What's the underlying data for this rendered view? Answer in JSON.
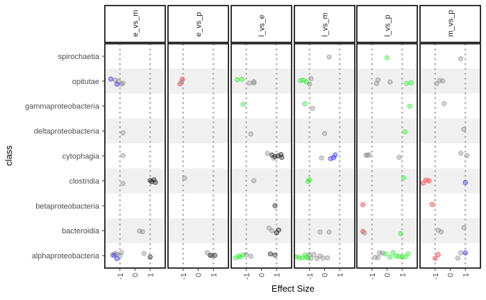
{
  "chart_data": {
    "type": "scatter",
    "title": "",
    "xlabel": "Effect Size",
    "ylabel": "class",
    "xlim": [
      -2,
      2
    ],
    "x_ticks": [
      "-1",
      "0",
      "1"
    ],
    "x_tick_values": [
      -1,
      0,
      1
    ],
    "reference_lines": [
      -1,
      1
    ],
    "grid": false,
    "legend": "none",
    "facets": [
      "e_vs_m",
      "e_vs_p",
      "l_vs_e",
      "l_vs_m",
      "l_vs_p",
      "m_vs_p"
    ],
    "categories": [
      "alphaproteobacteria",
      "bacteroidia",
      "betaproteobacteria",
      "clostridia",
      "cytophagia",
      "deltaproteobacteria",
      "gammaproteobacteria",
      "opitutae",
      "spirochaetia"
    ],
    "colors": {
      "grey": "#8c8c8c",
      "red": "#ff3030",
      "green": "#22ee22",
      "blue": "#2b2bff",
      "black": "#1e1e1e",
      "band": "#f0f0f0",
      "refline": "#b3b3b3"
    },
    "points": {
      "e_vs_m": [
        {
          "class": "spirochaetia",
          "x": [],
          "color": "grey"
        },
        {
          "class": "opitutae",
          "x": [
            -1.3,
            -1.1,
            -0.9,
            -0.8
          ],
          "color": "grey"
        },
        {
          "class": "opitutae",
          "x": [
            -1.6,
            -1.2
          ],
          "color": "blue"
        },
        {
          "class": "deltaproteobacteria",
          "x": [
            -0.8
          ],
          "color": "grey"
        },
        {
          "class": "cytophagia",
          "x": [
            -0.8
          ],
          "color": "grey"
        },
        {
          "class": "clostridia",
          "x": [
            -0.8
          ],
          "color": "grey"
        },
        {
          "class": "clostridia",
          "x": [
            1.0,
            1.1,
            1.25,
            1.35
          ],
          "color": "black"
        },
        {
          "class": "bacteroidia",
          "x": [
            0.3,
            0.5
          ],
          "color": "grey"
        },
        {
          "class": "alphaproteobacteria",
          "x": [
            -1.5,
            -1.3,
            -1.2,
            -1.0,
            -0.9,
            0.6
          ],
          "color": "grey"
        },
        {
          "class": "alphaproteobacteria",
          "x": [
            -1.4,
            -1.2
          ],
          "color": "blue"
        },
        {
          "class": "alphaproteobacteria",
          "x": [
            1.0
          ],
          "color": "black"
        }
      ],
      "e_vs_p": [
        {
          "class": "opitutae",
          "x": [
            -1.2,
            -1.05
          ],
          "color": "red"
        },
        {
          "class": "opitutae",
          "x": [
            -1.1
          ],
          "color": "grey"
        },
        {
          "class": "clostridia",
          "x": [
            -0.9
          ],
          "color": "grey"
        },
        {
          "class": "alphaproteobacteria",
          "x": [
            0.6,
            0.9
          ],
          "color": "grey"
        },
        {
          "class": "alphaproteobacteria",
          "x": [
            0.8,
            1.1
          ],
          "color": "black"
        }
      ],
      "l_vs_e": [
        {
          "class": "opitutae",
          "x": [
            -1.6,
            -1.3
          ],
          "color": "green"
        },
        {
          "class": "opitutae",
          "x": [
            -0.8,
            -0.5,
            -0.5
          ],
          "color": "grey"
        },
        {
          "class": "gammaproteobacteria",
          "x": [
            -1.2
          ],
          "color": "green"
        },
        {
          "class": "deltaproteobacteria",
          "x": [
            -0.7
          ],
          "color": "grey"
        },
        {
          "class": "cytophagia",
          "x": [
            0.4,
            0.8
          ],
          "color": "grey"
        },
        {
          "class": "cytophagia",
          "x": [
            0.7,
            0.9,
            1.1,
            1.3,
            1.35
          ],
          "color": "black"
        },
        {
          "class": "clostridia",
          "x": [
            -0.5
          ],
          "color": "grey"
        },
        {
          "class": "betaproteobacteria",
          "x": [
            0.9
          ],
          "color": "black"
        },
        {
          "class": "bacteroidia",
          "x": [
            0.5,
            0.7
          ],
          "color": "grey"
        },
        {
          "class": "bacteroidia",
          "x": [
            1.0,
            1.15
          ],
          "color": "black"
        },
        {
          "class": "alphaproteobacteria",
          "x": [
            -1.7,
            -1.5,
            -1.4,
            -1.2
          ],
          "color": "green"
        },
        {
          "class": "alphaproteobacteria",
          "x": [
            -1.0,
            -0.7
          ],
          "color": "grey"
        },
        {
          "class": "alphaproteobacteria",
          "x": [
            0.6,
            0.9
          ],
          "color": "black"
        }
      ],
      "l_vs_m": [
        {
          "class": "spirochaetia",
          "x": [
            0.3
          ],
          "color": "grey"
        },
        {
          "class": "opitutae",
          "x": [
            -1.6,
            -1.4,
            -1.2
          ],
          "color": "green"
        },
        {
          "class": "opitutae",
          "x": [
            -1.0,
            -0.9
          ],
          "color": "grey"
        },
        {
          "class": "gammaproteobacteria",
          "x": [
            -1.3
          ],
          "color": "green"
        },
        {
          "class": "gammaproteobacteria",
          "x": [
            -0.8
          ],
          "color": "grey"
        },
        {
          "class": "deltaproteobacteria",
          "x": [
            0.0
          ],
          "color": "grey"
        },
        {
          "class": "cytophagia",
          "x": [
            -0.2
          ],
          "color": "grey"
        },
        {
          "class": "cytophagia",
          "x": [
            0.4,
            0.6,
            0.7
          ],
          "color": "blue"
        },
        {
          "class": "clostridia",
          "x": [
            -1.1,
            -1.0
          ],
          "color": "green"
        },
        {
          "class": "bacteroidia",
          "x": [
            -0.3
          ],
          "color": "grey"
        },
        {
          "class": "bacteroidia",
          "x": [
            0.3
          ],
          "color": "grey"
        },
        {
          "class": "alphaproteobacteria",
          "x": [
            -1.9,
            -1.7,
            -1.5,
            -1.3,
            -1.2,
            -1.1
          ],
          "color": "green"
        },
        {
          "class": "alphaproteobacteria",
          "x": [
            -1.0,
            -0.9,
            -0.7,
            -0.5,
            -0.3,
            -0.1,
            0.2
          ],
          "color": "grey"
        }
      ],
      "l_vs_p": [
        {
          "class": "spirochaetia",
          "x": [
            0.0
          ],
          "color": "green"
        },
        {
          "class": "opitutae",
          "x": [
            -0.7,
            -0.6,
            0.2
          ],
          "color": "grey"
        },
        {
          "class": "opitutae",
          "x": [
            1.3,
            1.6
          ],
          "color": "green"
        },
        {
          "class": "gammaproteobacteria",
          "x": [
            1.5
          ],
          "color": "green"
        },
        {
          "class": "deltaproteobacteria",
          "x": [
            1.2
          ],
          "color": "green"
        },
        {
          "class": "cytophagia",
          "x": [
            -1.4,
            -1.3,
            -1.2
          ],
          "color": "grey"
        },
        {
          "class": "cytophagia",
          "x": [
            0.8
          ],
          "color": "grey"
        },
        {
          "class": "clostridia",
          "x": [
            1.1
          ],
          "color": "green"
        },
        {
          "class": "betaproteobacteria",
          "x": [
            -1.6
          ],
          "color": "red"
        },
        {
          "class": "bacteroidia",
          "x": [
            -1.6
          ],
          "color": "red"
        },
        {
          "class": "bacteroidia",
          "x": [
            -1.5
          ],
          "color": "grey"
        },
        {
          "class": "bacteroidia",
          "x": [
            0.9
          ],
          "color": "green"
        },
        {
          "class": "alphaproteobacteria",
          "x": [
            -0.8,
            -0.6,
            -0.5,
            -0.3
          ],
          "color": "grey"
        },
        {
          "class": "alphaproteobacteria",
          "x": [
            -0.1,
            0.2,
            0.4,
            0.6,
            0.8,
            1.0,
            1.2,
            1.4
          ],
          "color": "green"
        }
      ],
      "m_vs_p": [
        {
          "class": "spirochaetia",
          "x": [
            0.7
          ],
          "color": "grey"
        },
        {
          "class": "opitutae",
          "x": [
            -0.9,
            -0.7,
            -0.5
          ],
          "color": "grey"
        },
        {
          "class": "gammaproteobacteria",
          "x": [
            -0.4
          ],
          "color": "grey"
        },
        {
          "class": "deltaproteobacteria",
          "x": [
            0.9
          ],
          "color": "grey"
        },
        {
          "class": "cytophagia",
          "x": [
            0.7,
            1.1
          ],
          "color": "grey"
        },
        {
          "class": "clostridia",
          "x": [
            -1.8,
            -1.6,
            -1.4
          ],
          "color": "red"
        },
        {
          "class": "clostridia",
          "x": [
            1.0
          ],
          "color": "blue"
        },
        {
          "class": "betaproteobacteria",
          "x": [
            -1.2
          ],
          "color": "red"
        },
        {
          "class": "bacteroidia",
          "x": [
            -0.8,
            -0.6
          ],
          "color": "grey"
        },
        {
          "class": "bacteroidia",
          "x": [
            0.9
          ],
          "color": "grey"
        },
        {
          "class": "alphaproteobacteria",
          "x": [
            -1.0,
            -0.8
          ],
          "color": "red"
        },
        {
          "class": "alphaproteobacteria",
          "x": [
            0.5,
            0.7
          ],
          "color": "grey"
        },
        {
          "class": "alphaproteobacteria",
          "x": [
            1.0
          ],
          "color": "blue"
        }
      ]
    }
  }
}
